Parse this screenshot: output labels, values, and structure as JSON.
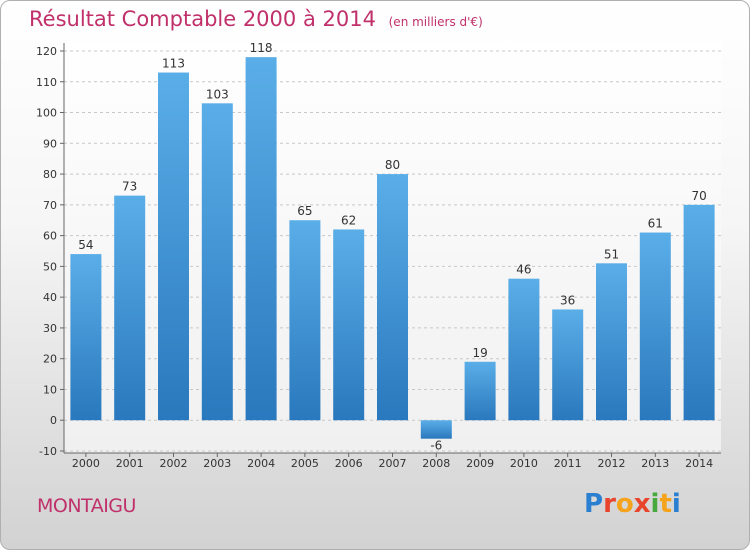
{
  "header": {
    "title": "Résultat Comptable 2000 à 2014",
    "subtitle": "(en milliers d'€)"
  },
  "footer": {
    "town": "MONTAIGU",
    "logo_letters": [
      "P",
      "r",
      "o",
      "x",
      "i",
      "t",
      "i"
    ],
    "logo_colors": [
      "#2a7fd0",
      "#e8452c",
      "#f4a31a",
      "#e8452c",
      "#46a83e",
      "#f4a31a",
      "#2a7fd0"
    ]
  },
  "colors": {
    "bar_light": "#5aaee8",
    "bar_dark": "#2a78bd",
    "text": "#c0306a"
  },
  "chart_data": {
    "type": "bar",
    "title": "Résultat Comptable 2000 à 2014",
    "subtitle": "(en milliers d'€)",
    "categories": [
      "2000",
      "2001",
      "2002",
      "2003",
      "2004",
      "2005",
      "2006",
      "2007",
      "2008",
      "2009",
      "2010",
      "2011",
      "2012",
      "2013",
      "2014"
    ],
    "values": [
      54,
      73,
      113,
      103,
      118,
      65,
      62,
      80,
      -6,
      19,
      46,
      36,
      51,
      61,
      70
    ],
    "ylim": [
      -10,
      120
    ],
    "yticks": [
      -10,
      0,
      10,
      20,
      30,
      40,
      50,
      60,
      70,
      80,
      90,
      100,
      110,
      120
    ],
    "grid": true,
    "grid_style": "dashed",
    "data_labels": true
  }
}
